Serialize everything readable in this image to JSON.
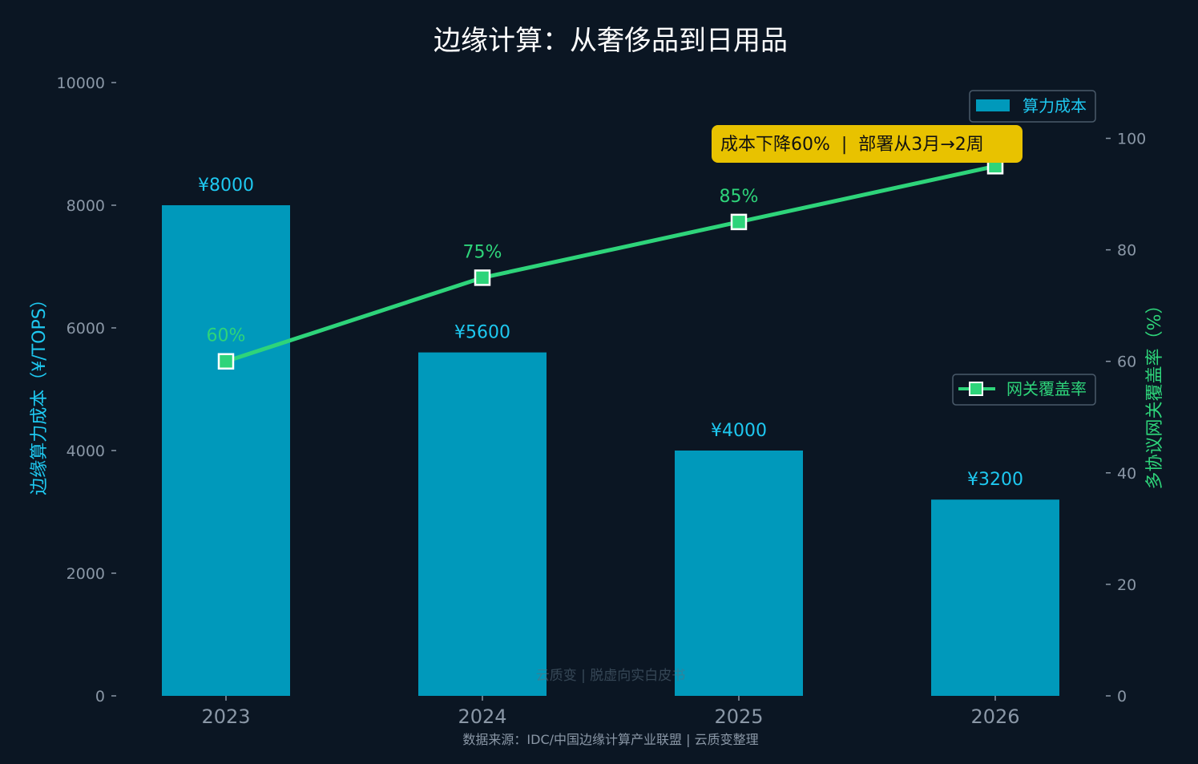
{
  "chart_data": {
    "type": "bar+line",
    "title": "边缘计算：从奢侈品到日用品",
    "categories": [
      "2023",
      "2024",
      "2025",
      "2026"
    ],
    "series": [
      {
        "name": "算力成本",
        "type": "bar",
        "axis": "left",
        "values": [
          8000,
          5600,
          4000,
          3200
        ],
        "labels": [
          "¥8000",
          "¥5600",
          "¥4000",
          "¥3200"
        ],
        "color": "#0099bb"
      },
      {
        "name": "网关覆盖率",
        "type": "line",
        "axis": "right",
        "values": [
          60,
          75,
          85,
          95
        ],
        "labels": [
          "60%",
          "75%",
          "85%",
          "95%"
        ],
        "color": "#2ed47a"
      }
    ],
    "ylabel_left": "边缘算力成本（¥/TOPS）",
    "ylabel_right": "多协议网关覆盖率（%）",
    "ylim_left": [
      0,
      10000
    ],
    "yticks_left": [
      "0",
      "2000",
      "4000",
      "6000",
      "8000",
      "10000"
    ],
    "ylim_right": [
      0,
      110
    ],
    "yticks_right": [
      "0",
      "20",
      "40",
      "60",
      "80",
      "100"
    ],
    "annotation": "成本下降60%  |  部署从3月→2周",
    "legend_bar_position": "top-right",
    "legend_line_position": "center-right",
    "source": "数据来源：IDC/中国边缘计算产业联盟 | 云质变整理",
    "watermark": "云质变 | 脱虚向实白皮书",
    "grid": false
  },
  "colors": {
    "background": "#0b1623",
    "bar": "#0099bb",
    "bar_label": "#1ec8f0",
    "line": "#2ed47a",
    "annotation_bg": "#e8c200",
    "axis_text": "#8a97a6"
  }
}
